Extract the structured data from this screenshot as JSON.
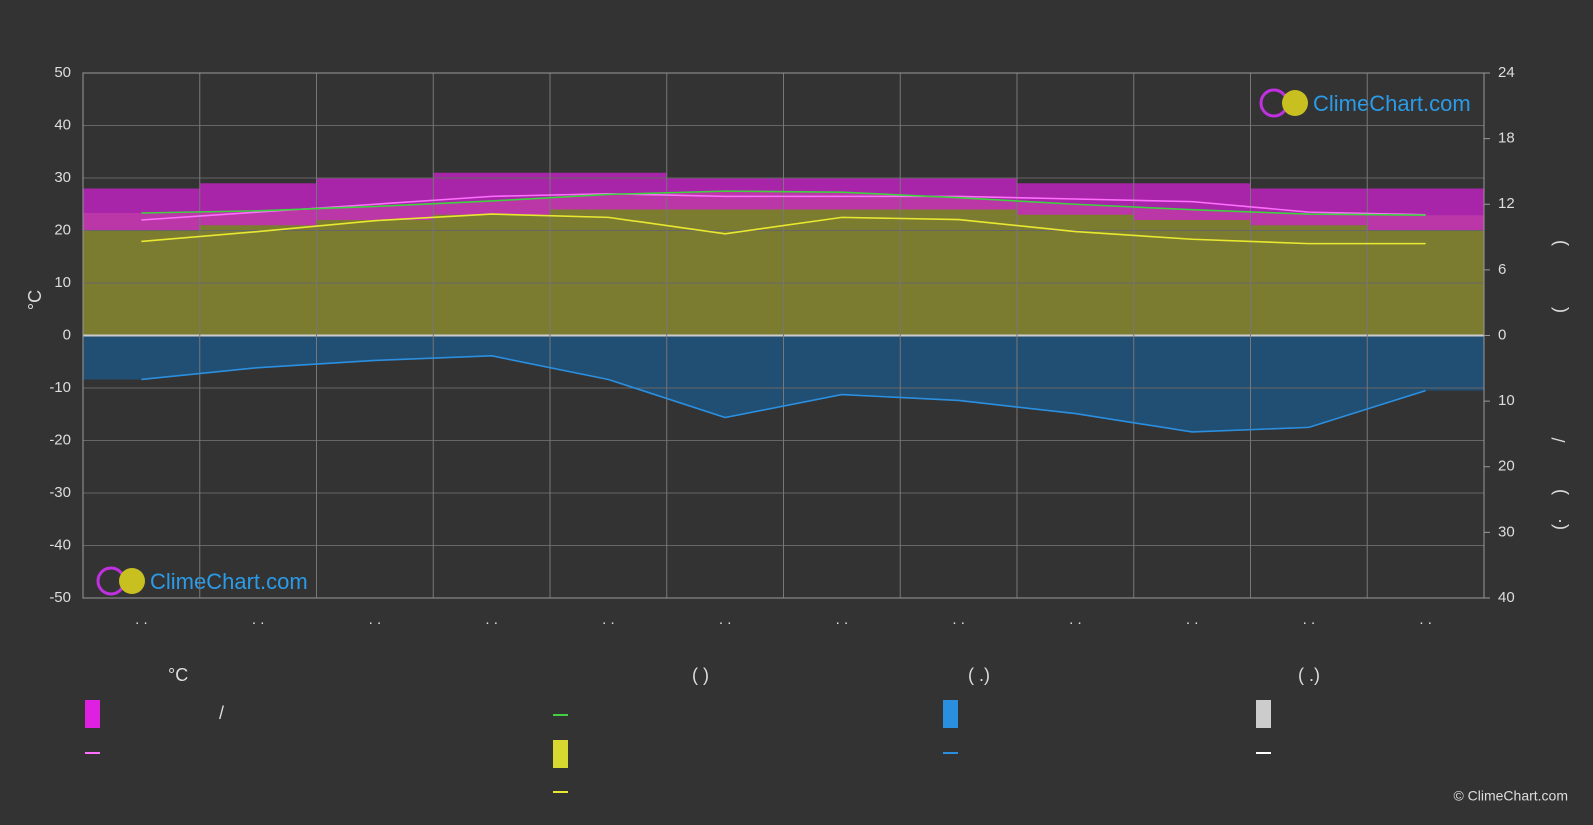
{
  "chart_data": {
    "type": "climate",
    "categories": [
      ". .",
      ". .",
      ". .",
      ". .",
      ". .",
      ". .",
      ". .",
      ". .",
      ". .",
      ". .",
      ". .",
      ". ."
    ],
    "y_label": "°C",
    "ylim": [
      -50,
      50
    ],
    "yticks": [
      -50,
      -40,
      -30,
      -20,
      -10,
      0,
      10,
      20,
      30,
      40,
      50
    ],
    "y2lim": [
      0,
      24
    ],
    "y2ticks": [
      0,
      6,
      12,
      18,
      24
    ],
    "y3lim": [
      0,
      40
    ],
    "y3ticks": [
      10,
      20,
      30,
      40
    ],
    "grid": true,
    "band": {
      "color": "#d020d0",
      "low": [
        20,
        21,
        22,
        23,
        24,
        24,
        24,
        24,
        23,
        22,
        21,
        20
      ],
      "high": [
        28,
        29,
        30,
        31,
        31,
        30,
        30,
        30,
        29,
        29,
        28,
        28
      ]
    },
    "series": [
      {
        "color": "#ff70ff",
        "axis": "y",
        "values": [
          22,
          23.5,
          25,
          26.5,
          27,
          26.5,
          26.5,
          26.5,
          26,
          25.5,
          23.5,
          23
        ]
      },
      {
        "color": "#40d040",
        "axis": "y2",
        "fill": "#8a8a30",
        "values": [
          11.2,
          11.4,
          11.8,
          12.3,
          12.9,
          13.2,
          13.1,
          12.6,
          12.0,
          11.5,
          11.1,
          11.0
        ]
      },
      {
        "color": "#e8e830",
        "axis": "y2",
        "values": [
          8.6,
          9.5,
          10.5,
          11.1,
          10.8,
          9.3,
          10.8,
          10.6,
          9.5,
          8.8,
          8.4,
          8.4
        ]
      },
      {
        "color": "#2b8fe0",
        "axis": "y3",
        "fill": "#1f5580",
        "values": [
          6.7,
          4.9,
          3.8,
          3.1,
          6.7,
          12.5,
          9.0,
          9.9,
          11.9,
          14.7,
          14.0,
          8.4
        ]
      }
    ],
    "right_axis_fragments": [
      ")",
      "(",
      "/",
      ")",
      "(·"
    ],
    "legend_headings": [
      "°C",
      "(          )",
      "(   .)",
      "(   .)"
    ],
    "legend_text": "/",
    "logo": "ClimeChart.com",
    "copyright": "© ClimeChart.com"
  }
}
